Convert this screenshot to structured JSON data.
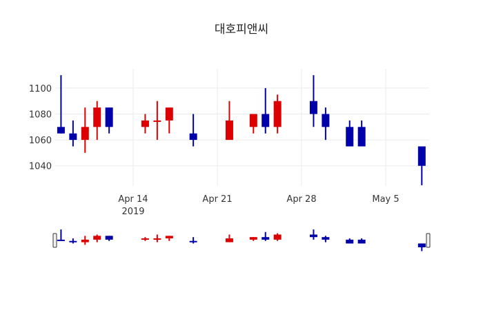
{
  "chart_data": {
    "type": "candlestick",
    "title": "대호피앤씨",
    "xlabel": "",
    "ylabel": "",
    "ylim": [
      1022,
      1112
    ],
    "y_ticks": [
      1040,
      1060,
      1080,
      1100
    ],
    "x_ticks": [
      {
        "date": "2019-04-14",
        "label": "Apr 14",
        "sublabel": "2019"
      },
      {
        "date": "2019-04-21",
        "label": "Apr 21",
        "sublabel": ""
      },
      {
        "date": "2019-04-28",
        "label": "Apr 28",
        "sublabel": ""
      },
      {
        "date": "2019-05-05",
        "label": "May 5",
        "sublabel": ""
      }
    ],
    "grid": true,
    "range_slider": true,
    "increasing_color": "#dd0000",
    "decreasing_color": "#0000aa",
    "x": [
      "2019-04-08",
      "2019-04-09",
      "2019-04-10",
      "2019-04-11",
      "2019-04-12",
      "2019-04-15",
      "2019-04-16",
      "2019-04-17",
      "2019-04-19",
      "2019-04-22",
      "2019-04-24",
      "2019-04-25",
      "2019-04-26",
      "2019-04-29",
      "2019-04-30",
      "2019-05-02",
      "2019-05-03",
      "2019-05-08"
    ],
    "open": [
      1070,
      1065,
      1060,
      1070,
      1085,
      1070,
      1075,
      1075,
      1065,
      1060,
      1070,
      1080,
      1070,
      1090,
      1080,
      1070,
      1070,
      1055
    ],
    "high": [
      1110,
      1075,
      1085,
      1090,
      1085,
      1080,
      1090,
      1085,
      1080,
      1090,
      1080,
      1100,
      1095,
      1110,
      1085,
      1075,
      1075,
      1055
    ],
    "low": [
      1065,
      1055,
      1050,
      1060,
      1065,
      1065,
      1060,
      1065,
      1055,
      1060,
      1065,
      1065,
      1065,
      1070,
      1060,
      1055,
      1055,
      1025
    ],
    "close": [
      1065,
      1060,
      1070,
      1085,
      1070,
      1075,
      1075,
      1085,
      1060,
      1075,
      1080,
      1070,
      1090,
      1080,
      1070,
      1055,
      1055,
      1040
    ]
  }
}
